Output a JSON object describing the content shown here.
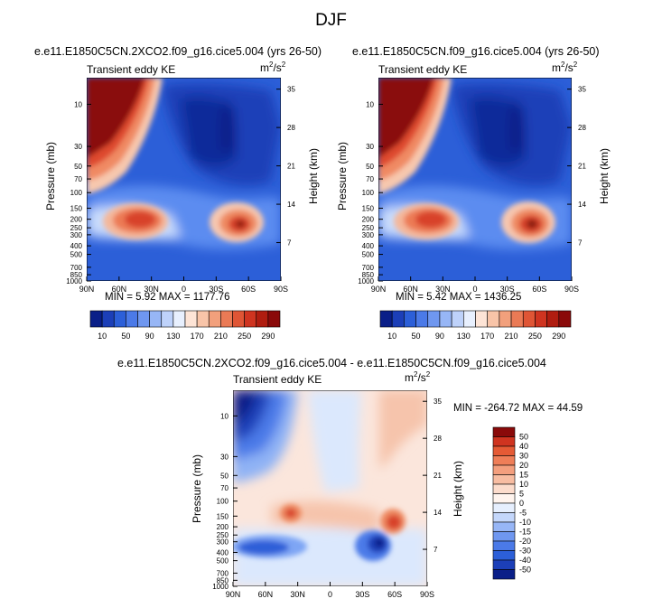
{
  "page": {
    "title": "DJF",
    "colors": {
      "text": "#000000",
      "background": "#ffffff"
    }
  },
  "chart_data": [
    {
      "type": "heatmap",
      "id": "panel-co2",
      "title": "e.e11.E1850C5CN.2XCO2.f09_g16.cice5.004 (yrs 26-50)",
      "variable": "Transient eddy KE",
      "units": "m²/s²",
      "units_base": "m",
      "units_sup1": "2",
      "units_mid": "/s",
      "units_sup2": "2",
      "ylabel": "Pressure (mb)",
      "ylabel_right": "Height (km)",
      "x_ticks": [
        "90N",
        "60N",
        "30N",
        "0",
        "30S",
        "60S",
        "90S"
      ],
      "y_ticks": [
        "10",
        "30",
        "50",
        "70",
        "100",
        "150",
        "200",
        "250",
        "300",
        "400",
        "500",
        "700",
        "850",
        "1000"
      ],
      "y_right_ticks": [
        "35",
        "28",
        "21",
        "14",
        "7"
      ],
      "stats": "MIN =  5.92  MAX = 1177.76",
      "min": 5.92,
      "max": 1177.76,
      "colorbar_labels": [
        "10",
        "50",
        "90",
        "130",
        "170",
        "210",
        "250",
        "290"
      ],
      "jets": [
        {
          "lat": 40,
          "pressure": 250,
          "peak": 230
        },
        {
          "lat": -47,
          "pressure": 260,
          "peak": 300
        }
      ]
    },
    {
      "type": "heatmap",
      "id": "panel-ctrl",
      "title": "e.e11.E1850C5CN.f09_g16.cice5.004 (yrs 26-50)",
      "variable": "Transient eddy KE",
      "units": "m²/s²",
      "units_base": "m",
      "units_sup1": "2",
      "units_mid": "/s",
      "units_sup2": "2",
      "ylabel": "Pressure (mb)",
      "ylabel_right": "Height (km)",
      "x_ticks": [
        "90N",
        "60N",
        "30N",
        "0",
        "30S",
        "60S",
        "90S"
      ],
      "y_ticks": [
        "10",
        "30",
        "50",
        "70",
        "100",
        "150",
        "200",
        "250",
        "300",
        "400",
        "500",
        "700",
        "850",
        "1000"
      ],
      "y_right_ticks": [
        "35",
        "28",
        "21",
        "14",
        "7"
      ],
      "stats": "MIN =  5.42  MAX = 1436.25",
      "min": 5.42,
      "max": 1436.25,
      "colorbar_labels": [
        "10",
        "50",
        "90",
        "130",
        "170",
        "210",
        "250",
        "290"
      ],
      "jets": [
        {
          "lat": 40,
          "pressure": 250,
          "peak": 240
        },
        {
          "lat": -47,
          "pressure": 260,
          "peak": 310
        }
      ]
    },
    {
      "type": "heatmap",
      "id": "panel-diff",
      "title": "e.e11.E1850C5CN.2XCO2.f09_g16.cice5.004 - e.e11.E1850C5CN.f09_g16.cice5.004",
      "variable": "Transient eddy KE",
      "units": "m²/s²",
      "units_base": "m",
      "units_sup1": "2",
      "units_mid": "/s",
      "units_sup2": "2",
      "ylabel": "Pressure (mb)",
      "ylabel_right": "Height (km)",
      "x_ticks": [
        "90N",
        "60N",
        "30N",
        "0",
        "30S",
        "60S",
        "90S"
      ],
      "y_ticks": [
        "10",
        "30",
        "50",
        "70",
        "100",
        "150",
        "200",
        "250",
        "300",
        "400",
        "500",
        "700",
        "850",
        "1000"
      ],
      "y_right_ticks": [
        "35",
        "28",
        "21",
        "14",
        "7"
      ],
      "stats": "MIN = -264.72  MAX =  44.59",
      "min": -264.72,
      "max": 44.59,
      "colorbar_labels": [
        "50",
        "40",
        "30",
        "20",
        "15",
        "10",
        "5",
        "0",
        "-5",
        "-10",
        "-15",
        "-20",
        "-30",
        "-40",
        "-50"
      ]
    }
  ]
}
